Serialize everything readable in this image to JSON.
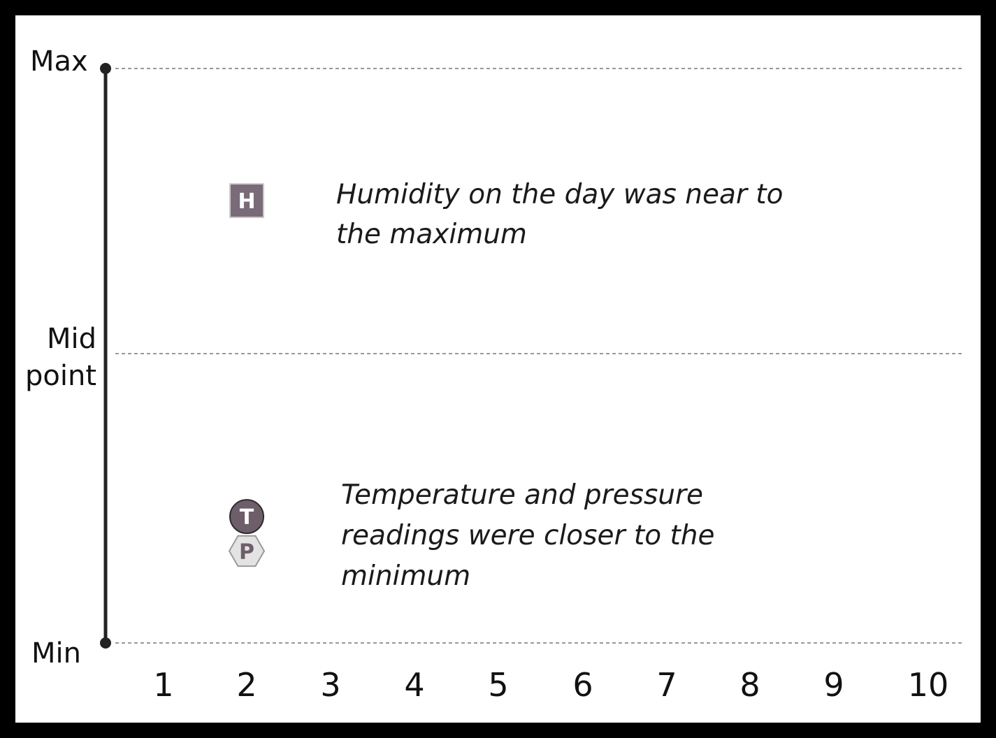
{
  "chart_data": {
    "type": "scatter",
    "y_scale_labels": {
      "max": "Max",
      "mid_line1": "Mid",
      "mid_line2": "point",
      "min": "Min"
    },
    "x_ticks": [
      "1",
      "2",
      "3",
      "4",
      "5",
      "6",
      "7",
      "8",
      "9",
      "10"
    ],
    "xlim": [
      1,
      10
    ],
    "ylim": [
      0,
      1
    ],
    "reference_lines": [
      {
        "label": "Max",
        "y": 1.0
      },
      {
        "label": "Mid point",
        "y": 0.5
      },
      {
        "label": "Min",
        "y": 0.0
      }
    ],
    "points": [
      {
        "letter": "H",
        "shape": "square",
        "x": 2,
        "y": 0.77,
        "fill": "#7a6b78",
        "text_color": "#ffffff"
      },
      {
        "letter": "T",
        "shape": "circle",
        "x": 2,
        "y": 0.22,
        "fill": "#6e5e6a",
        "text_color": "#ffffff"
      },
      {
        "letter": "P",
        "shape": "hexagon",
        "x": 2,
        "y": 0.16,
        "fill": "#e3e3e3",
        "text_color": "#6e5e6a"
      }
    ],
    "annotations": [
      {
        "lines": [
          "Humidity on the day was near to",
          "the maximum"
        ]
      },
      {
        "lines": [
          "Temperature and pressure",
          "readings were closer to the",
          "minimum"
        ]
      }
    ],
    "grid": true
  },
  "colors": {
    "frame": "#000000",
    "axis": "#222222",
    "gridline": "#999999"
  }
}
